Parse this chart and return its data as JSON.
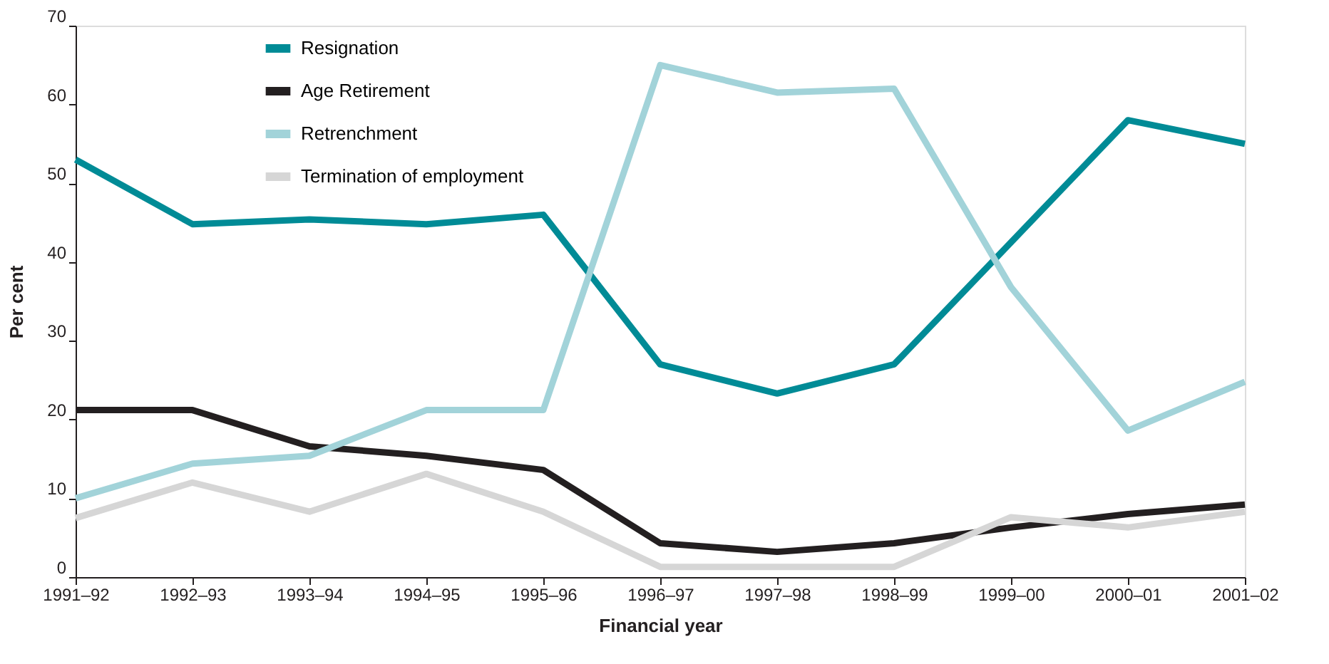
{
  "chart_data": {
    "type": "line",
    "xlabel": "Financial year",
    "ylabel": "Per cent",
    "categories": [
      "1991–92",
      "1992–93",
      "1993–94",
      "1994–95",
      "1995–96",
      "1996–97",
      "1997–98",
      "1998–99",
      "1999–00",
      "2000–01",
      "2001–02"
    ],
    "series": [
      {
        "name": "Resignation",
        "color": "#008b96",
        "values": [
          53,
          44.8,
          45.4,
          44.8,
          46,
          27,
          23.3,
          27,
          42.5,
          58,
          55
        ]
      },
      {
        "name": "Age Retirement",
        "color": "#231f20",
        "values": [
          21.2,
          21.2,
          16.6,
          15.4,
          13.6,
          4.3,
          3.2,
          4.3,
          6.3,
          8,
          9.2
        ]
      },
      {
        "name": "Retrenchment",
        "color": "#a2d3d9",
        "values": [
          10,
          14.4,
          15.4,
          21.2,
          21.2,
          65,
          61.5,
          62,
          36.8,
          18.6,
          24.8
        ]
      },
      {
        "name": "Termination of employment",
        "color": "#d6d6d6",
        "values": [
          7.5,
          12,
          8.3,
          13.1,
          8.3,
          1.3,
          1.3,
          1.3,
          7.6,
          6.3,
          8.3
        ]
      }
    ],
    "ylim": [
      0,
      70
    ],
    "yticks": [
      0,
      10,
      20,
      30,
      40,
      50,
      60,
      70
    ],
    "grid": false,
    "legend": "top left",
    "line_style": "solid",
    "marker": "none"
  }
}
